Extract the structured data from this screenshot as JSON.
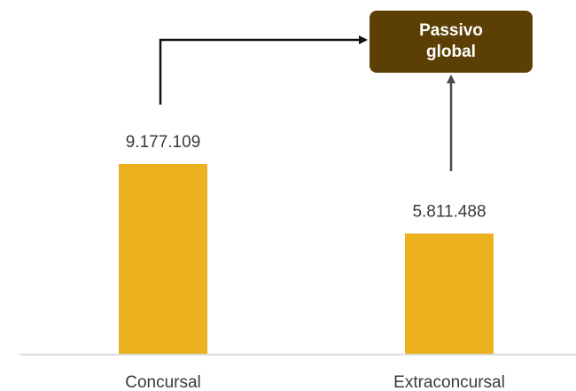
{
  "chart_data": {
    "type": "bar",
    "categories": [
      "Concursal",
      "Extraconcursal"
    ],
    "values": [
      9177109,
      5811488
    ],
    "data_labels": [
      "9.177.109",
      "5.811.488"
    ],
    "ylim": [
      0,
      10000000
    ],
    "grid": false,
    "bar_color": "#EBB11F",
    "axis_color": "#d0d0d0",
    "text_color": "#3a3a3a"
  },
  "callout": {
    "line1": "Passivo",
    "line2": "global",
    "fill": "#5C3F05",
    "arrow_color": "#111111",
    "connector_color": "#4a4a4a"
  }
}
